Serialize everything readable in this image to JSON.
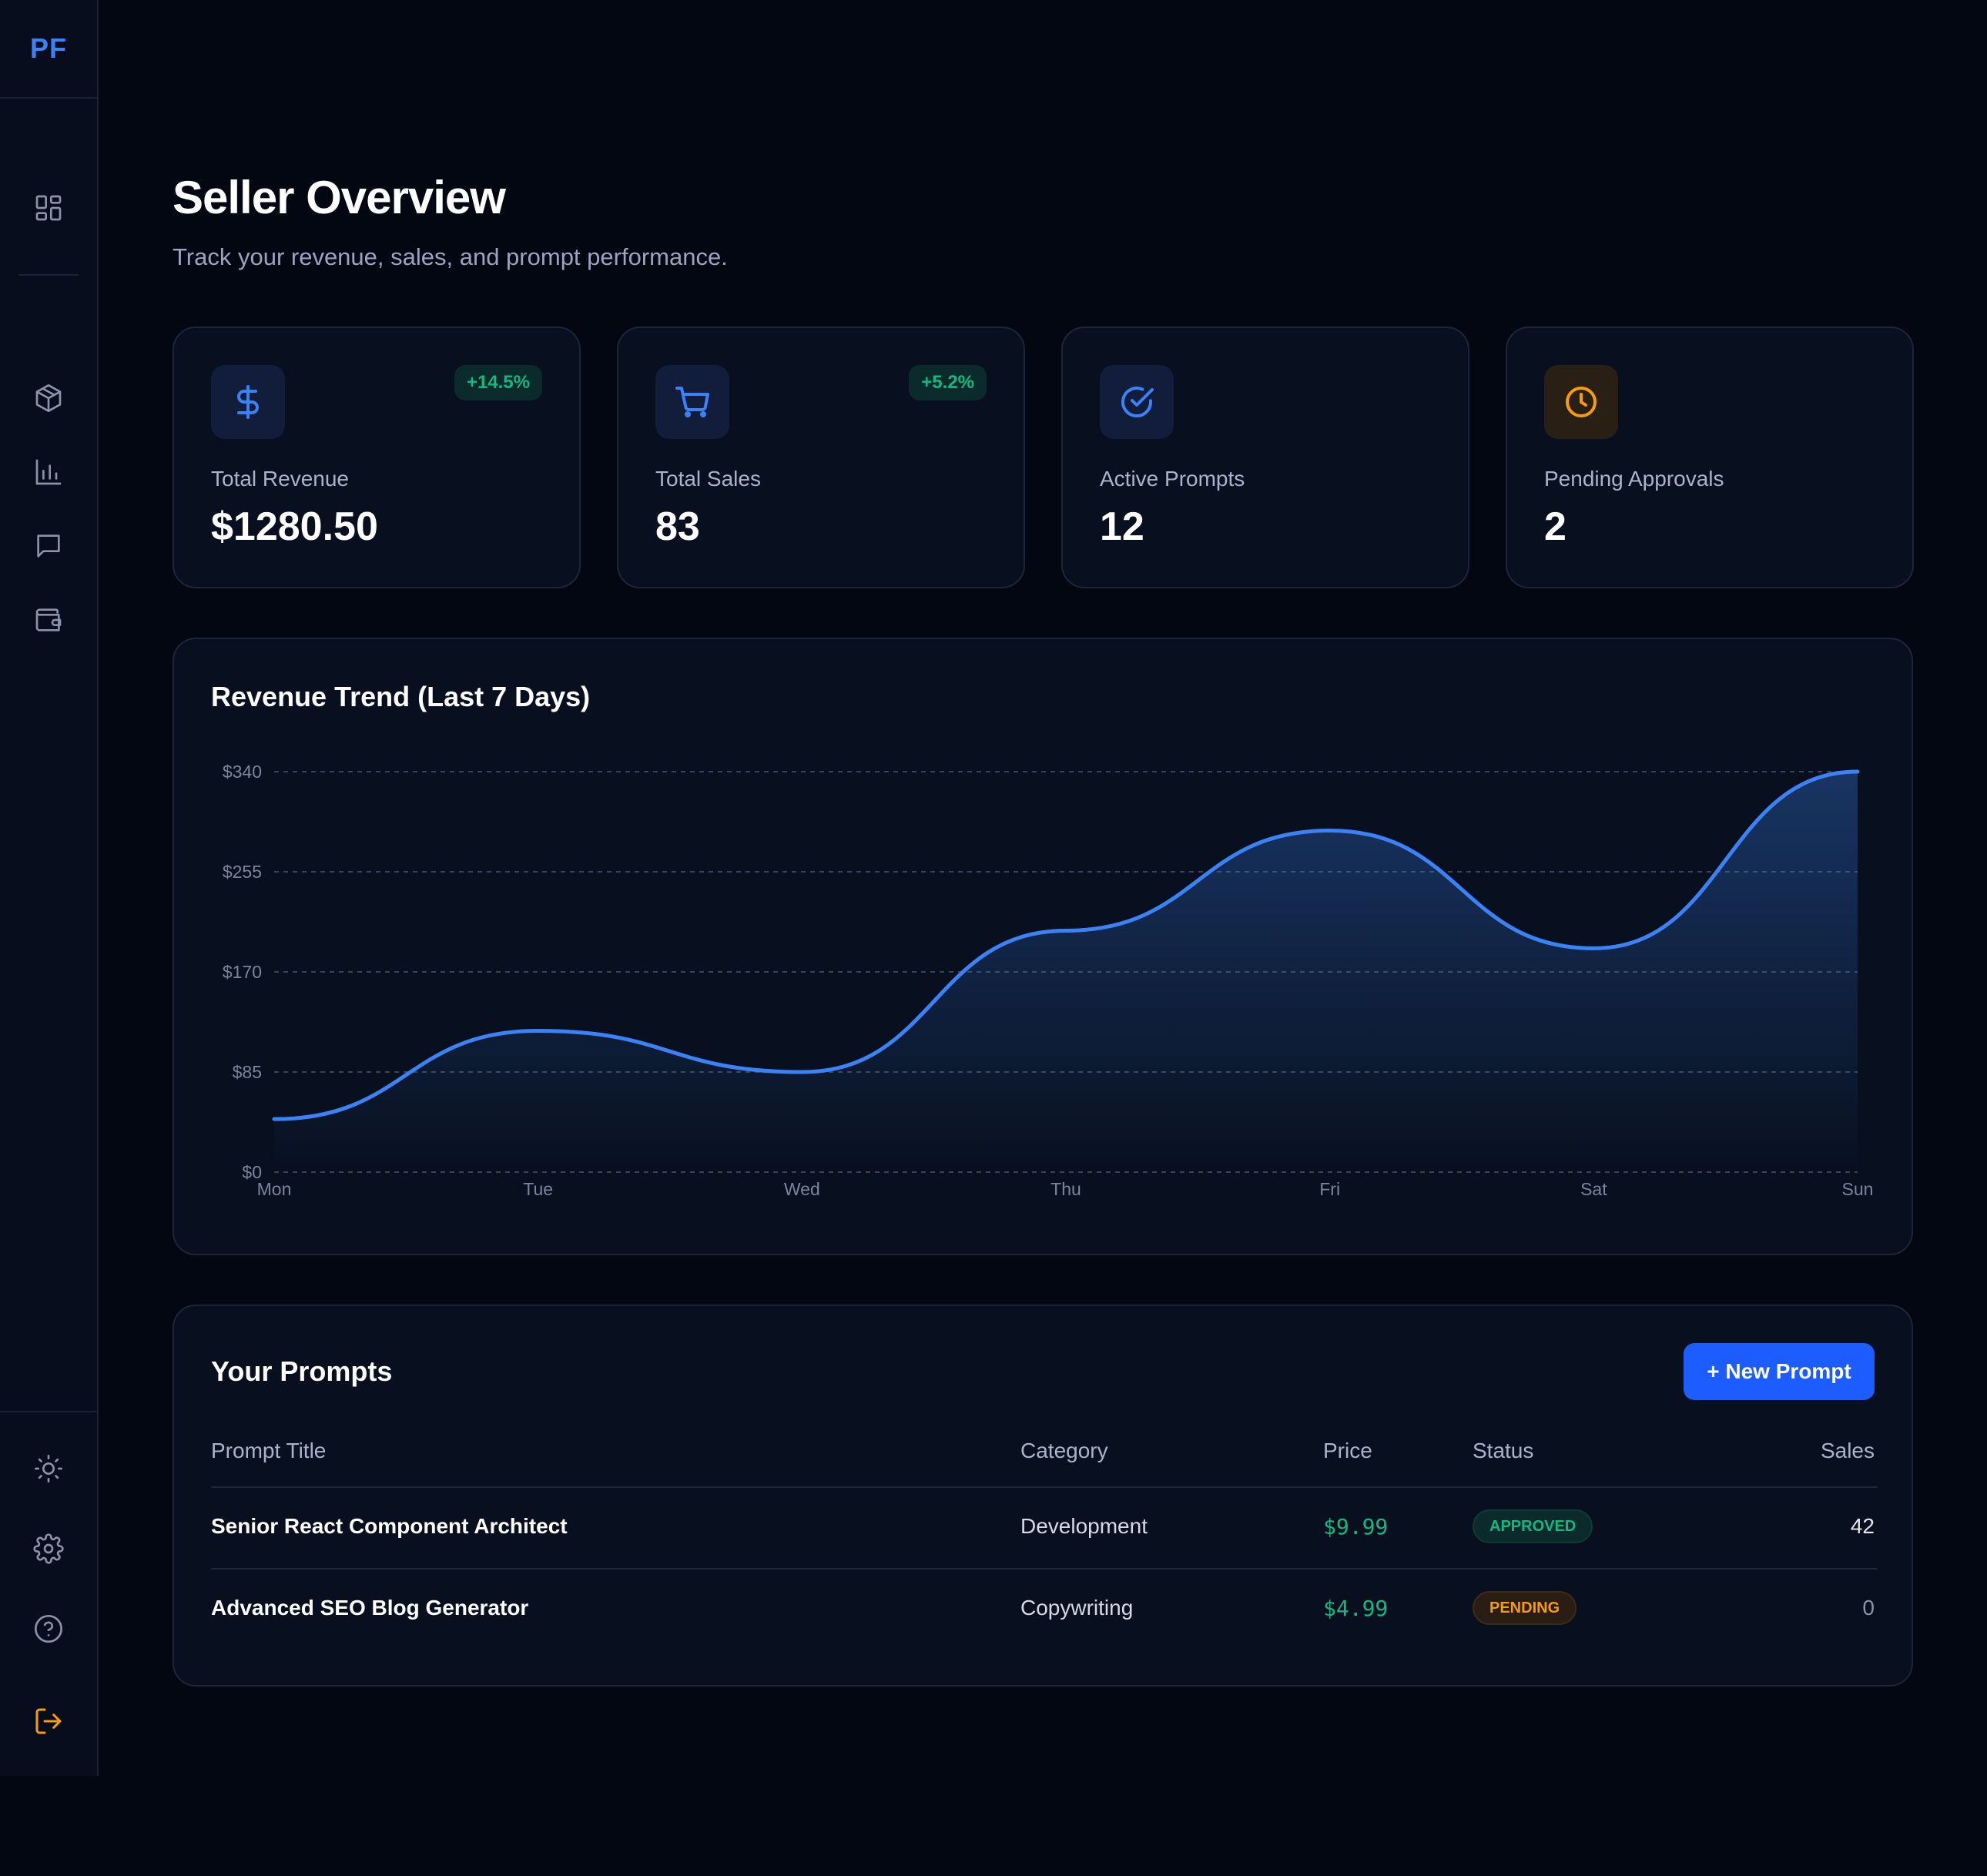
{
  "sidebar": {
    "logo": "PF",
    "nav": [
      {
        "icon": "dashboard-grid-icon"
      },
      {
        "icon": "package-box-icon"
      },
      {
        "icon": "bar-chart-icon"
      },
      {
        "icon": "message-icon"
      },
      {
        "icon": "wallet-icon"
      }
    ],
    "bottom": [
      {
        "icon": "sun-icon"
      },
      {
        "icon": "gear-icon"
      },
      {
        "icon": "help-circle-icon"
      },
      {
        "icon": "logout-icon"
      }
    ]
  },
  "header": {
    "title": "Seller Overview",
    "subtitle": "Track your revenue, sales, and prompt performance."
  },
  "stats": [
    {
      "label": "Total Revenue",
      "value": "$1280.50",
      "badge": "+14.5%",
      "icon": "dollar-icon",
      "color": "#3b82f6"
    },
    {
      "label": "Total Sales",
      "value": "83",
      "badge": "+5.2%",
      "icon": "cart-icon",
      "color": "#3b82f6"
    },
    {
      "label": "Active Prompts",
      "value": "12",
      "icon": "check-circle-icon",
      "color": "#3b82f6"
    },
    {
      "label": "Pending Approvals",
      "value": "2",
      "icon": "clock-icon",
      "color": "#f59e0b"
    }
  ],
  "chart_data": {
    "type": "area",
    "title": "Revenue Trend (Last 7 Days)",
    "categories": [
      "Mon",
      "Tue",
      "Wed",
      "Thu",
      "Fri",
      "Sat",
      "Sun"
    ],
    "values": [
      45,
      120,
      85,
      205,
      290,
      190,
      340
    ],
    "yticks": [
      "$0",
      "$85",
      "$170",
      "$255",
      "$340"
    ],
    "ylim": [
      0,
      340
    ],
    "grid": true,
    "line_color": "#3b82f6"
  },
  "table": {
    "title": "Your Prompts",
    "new_button": "+ New Prompt",
    "columns": [
      "Prompt Title",
      "Category",
      "Price",
      "Status",
      "Sales"
    ],
    "rows": [
      {
        "title": "Senior React Component Architect",
        "category": "Development",
        "price": "$9.99",
        "status": "APPROVED",
        "sales": "42"
      },
      {
        "title": "Advanced SEO Blog Generator",
        "category": "Copywriting",
        "price": "$4.99",
        "status": "PENDING",
        "sales": "0"
      }
    ]
  },
  "colors": {
    "accent": "#1d5cff",
    "success": "#10b981",
    "warning": "#f59e0b",
    "background": "#030712"
  }
}
